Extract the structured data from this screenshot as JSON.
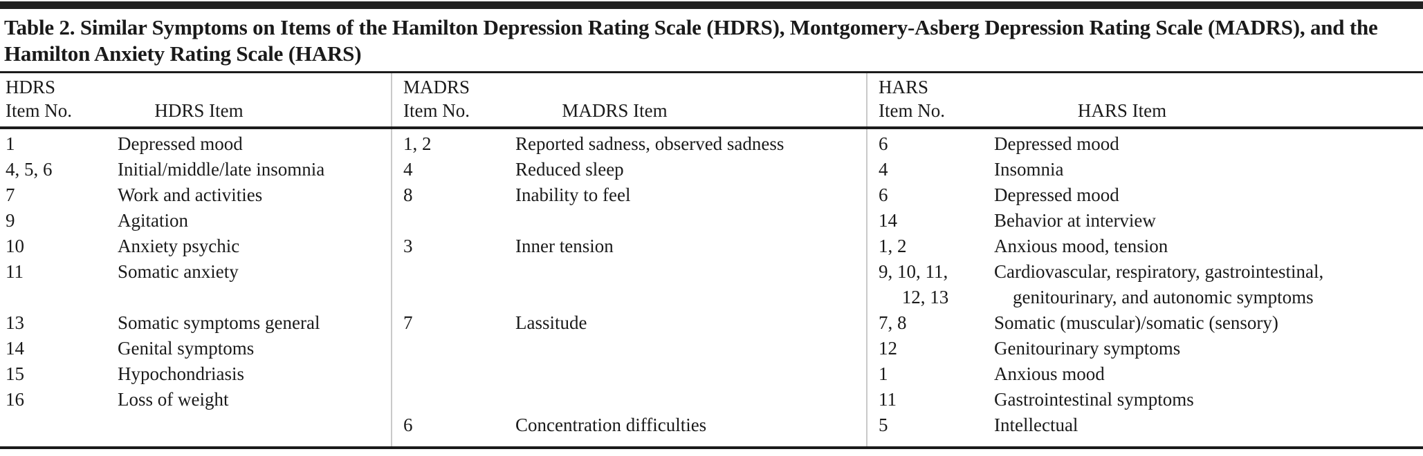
{
  "colors": {
    "text": "#1a1a1a",
    "heavy_rule": "#1b1b1b",
    "top_bar": "#212121",
    "group_divider": "#c9c9c9",
    "background": "#ffffff"
  },
  "table": {
    "title": "Table 2. Similar Symptoms on Items of the Hamilton Depression Rating Scale (HDRS), Montgomery-Asberg Depression Rating Scale (MADRS), and the Hamilton Anxiety Rating Scale (HARS)",
    "groups": [
      {
        "name": "HDRS",
        "no_header": "Item No.",
        "item_header": "HDRS Item"
      },
      {
        "name": "MADRS",
        "no_header": "Item No.",
        "item_header": "MADRS Item"
      },
      {
        "name": "HARS",
        "no_header": "Item No.",
        "item_header": "HARS Item"
      }
    ],
    "rows": [
      {
        "hdrs_no": "1",
        "hdrs_item": "Depressed mood",
        "madrs_no": "1, 2",
        "madrs_item": "Reported sadness, observed sadness",
        "hars_no": "6",
        "hars_item": "Depressed mood"
      },
      {
        "hdrs_no": "4, 5, 6",
        "hdrs_item": "Initial/middle/late insomnia",
        "madrs_no": "4",
        "madrs_item": "Reduced sleep",
        "hars_no": "4",
        "hars_item": "Insomnia"
      },
      {
        "hdrs_no": "7",
        "hdrs_item": "Work and activities",
        "madrs_no": "8",
        "madrs_item": "Inability to feel",
        "hars_no": "6",
        "hars_item": "Depressed mood"
      },
      {
        "hdrs_no": "9",
        "hdrs_item": "Agitation",
        "madrs_no": "",
        "madrs_item": "",
        "hars_no": "14",
        "hars_item": "Behavior at interview"
      },
      {
        "hdrs_no": "10",
        "hdrs_item": "Anxiety psychic",
        "madrs_no": "3",
        "madrs_item": "Inner tension",
        "hars_no": "1, 2",
        "hars_item": "Anxious mood, tension"
      },
      {
        "hdrs_no": "11",
        "hdrs_item": "Somatic anxiety",
        "madrs_no": "",
        "madrs_item": "",
        "hars_no": "9, 10, 11,\n     12, 13",
        "hars_item": "Cardiovascular, respiratory, gastrointestinal,\n    genitourinary, and autonomic symptoms"
      },
      {
        "hdrs_no": "13",
        "hdrs_item": "Somatic symptoms general",
        "madrs_no": "7",
        "madrs_item": "Lassitude",
        "hars_no": "7, 8",
        "hars_item": "Somatic (muscular)/somatic (sensory)"
      },
      {
        "hdrs_no": "14",
        "hdrs_item": "Genital symptoms",
        "madrs_no": "",
        "madrs_item": "",
        "hars_no": "12",
        "hars_item": "Genitourinary symptoms"
      },
      {
        "hdrs_no": "15",
        "hdrs_item": "Hypochondriasis",
        "madrs_no": "",
        "madrs_item": "",
        "hars_no": "1",
        "hars_item": "Anxious mood"
      },
      {
        "hdrs_no": "16",
        "hdrs_item": "Loss of weight",
        "madrs_no": "",
        "madrs_item": "",
        "hars_no": "11",
        "hars_item": "Gastrointestinal symptoms"
      },
      {
        "hdrs_no": "",
        "hdrs_item": "",
        "madrs_no": "6",
        "madrs_item": "Concentration difficulties",
        "hars_no": "5",
        "hars_item": "Intellectual"
      }
    ]
  }
}
